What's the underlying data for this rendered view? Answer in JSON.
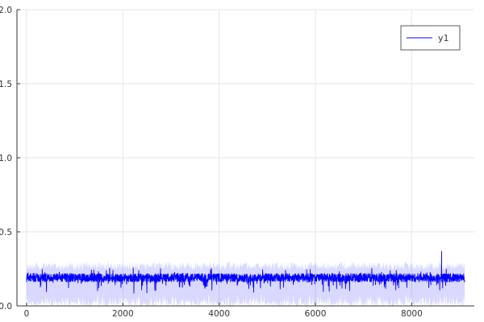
{
  "chart_data": {
    "type": "line",
    "title": "",
    "xlabel": "",
    "ylabel": "",
    "xlim": [
      -200,
      9300
    ],
    "ylim": [
      0.0,
      2.0
    ],
    "x_ticks": [
      {
        "value": 0,
        "label": "0"
      },
      {
        "value": 2000,
        "label": "2000"
      },
      {
        "value": 4000,
        "label": "4000"
      },
      {
        "value": 6000,
        "label": "6000"
      },
      {
        "value": 8000,
        "label": "8000"
      }
    ],
    "y_ticks": [
      {
        "value": 0.0,
        "label": "0.0"
      },
      {
        "value": 0.5,
        "label": "0.5"
      },
      {
        "value": 1.0,
        "label": "1.0"
      },
      {
        "value": 1.5,
        "label": "1.5"
      },
      {
        "value": 2.0,
        "label": "2.0"
      }
    ],
    "grid": true,
    "legend": {
      "position": "top-right",
      "entries": [
        "y1"
      ]
    },
    "series": [
      {
        "name": "y1",
        "color": "#0000ff",
        "x_start": 0,
        "x_end": 9100,
        "mean": 0.19,
        "noise_amplitude": 0.03,
        "ribbon_upper": 0.3,
        "ribbon_lower": 0.0,
        "ribbon_opacity": 0.15,
        "spike": {
          "x": 8620,
          "y": 0.37
        }
      }
    ]
  }
}
